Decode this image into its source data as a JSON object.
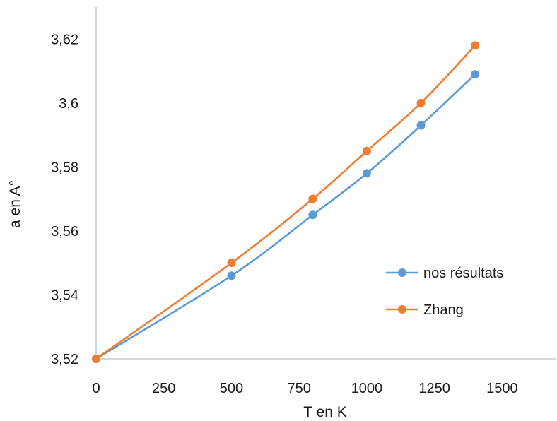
{
  "chart_data": {
    "type": "line",
    "title": "",
    "xlabel": "T en K",
    "ylabel": "a en A°",
    "xlim": [
      0,
      1700
    ],
    "ylim": [
      3.52,
      3.63
    ],
    "xticks": [
      "0",
      "250",
      "500",
      "750",
      "1000",
      "1250",
      "1500"
    ],
    "yticks": [
      "3,52",
      "3,54",
      "3,56",
      "3,58",
      "3,6",
      "3,62"
    ],
    "x": [
      0,
      500,
      800,
      1000,
      1200,
      1400
    ],
    "series": [
      {
        "name": "nos résultats",
        "color": "#5b9bd5",
        "values": [
          3.52,
          3.546,
          3.565,
          3.578,
          3.593,
          3.609
        ]
      },
      {
        "name": "Zhang",
        "color": "#ed7d31",
        "values": [
          3.52,
          3.55,
          3.57,
          3.585,
          3.6,
          3.618
        ]
      }
    ],
    "grid": false,
    "legend": "right"
  }
}
